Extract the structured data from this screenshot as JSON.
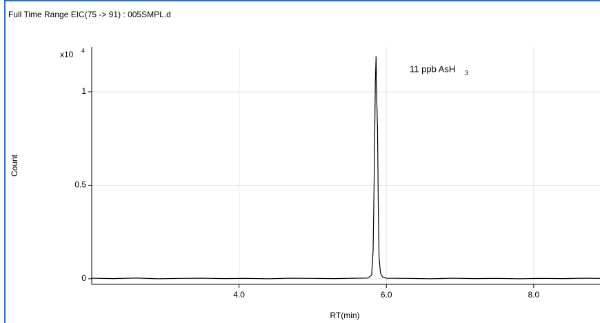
{
  "chart_data": {
    "type": "line",
    "title": "Full Time Range EIC(75 -> 91) : 005SMPL.d",
    "y_label": "Count",
    "x_label": "RT(min)",
    "y_multiplier": {
      "base": "x10",
      "exponent": "4"
    },
    "annotation": {
      "text": "11 ppb AsH",
      "subscript": "3"
    },
    "xlim": [
      2.0,
      8.9
    ],
    "ylim": [
      -0.03,
      1.24
    ],
    "xticks": [
      {
        "value": 4,
        "label": "4.0"
      },
      {
        "value": 6,
        "label": "6.0"
      },
      {
        "value": 8,
        "label": "8.0"
      }
    ],
    "yticks": [
      0,
      0.5,
      1
    ],
    "grid": true,
    "series": [
      {
        "color": "#000000",
        "x": [
          2.0,
          2.3,
          2.6,
          2.9,
          3.2,
          3.5,
          3.8,
          4.1,
          4.4,
          4.7,
          5.0,
          5.3,
          5.6,
          5.75,
          5.8,
          5.82,
          5.84,
          5.85,
          5.86,
          5.87,
          5.88,
          5.89,
          5.9,
          5.92,
          5.95,
          6.0,
          6.3,
          6.6,
          6.9,
          7.2,
          7.5,
          7.8,
          8.1,
          8.4,
          8.7,
          8.9
        ],
        "values": [
          0.003,
          0.001,
          0.004,
          0.0,
          0.002,
          0.003,
          0.001,
          0.002,
          0.0,
          0.003,
          0.002,
          0.001,
          0.003,
          0.004,
          0.02,
          0.15,
          0.7,
          1.05,
          1.19,
          0.95,
          0.8,
          0.4,
          0.12,
          0.03,
          0.008,
          0.003,
          0.002,
          0.0,
          0.003,
          0.001,
          0.002,
          0.0,
          0.002,
          0.001,
          0.003,
          0.002
        ]
      }
    ]
  }
}
